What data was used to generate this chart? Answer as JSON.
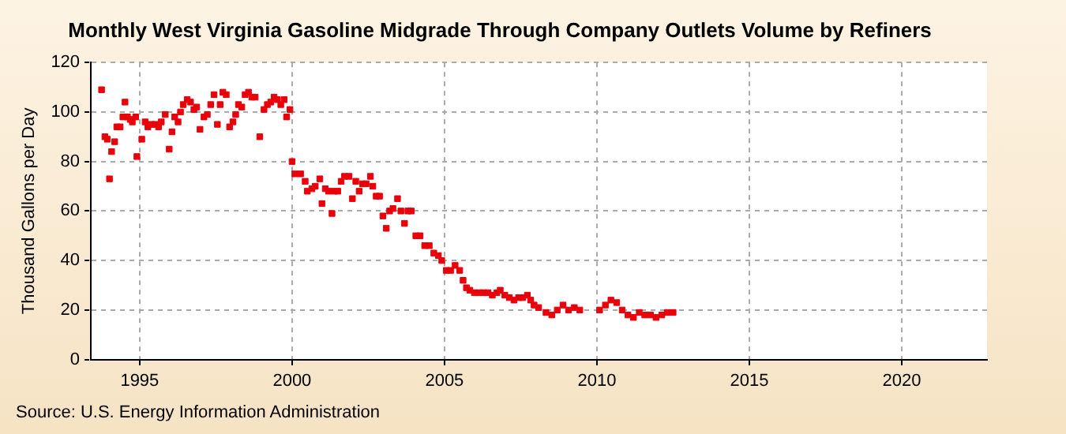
{
  "chart_data": {
    "type": "scatter",
    "title": "Monthly West Virginia Gasoline Midgrade Through Company Outlets Volume by Refiners",
    "ylabel": "Thousand Gallons per Day",
    "annotations": [
      "Source: U.S. Energy Information Administration"
    ],
    "xlim": [
      1993.4,
      2022.8
    ],
    "xticks": [
      1995,
      2000,
      2005,
      2010,
      2015,
      2020
    ],
    "ylim": [
      0,
      120
    ],
    "yticks": [
      0,
      20,
      40,
      60,
      80,
      100,
      120
    ],
    "grid": true,
    "marker": "square",
    "legend": false,
    "series": [
      {
        "color": "#e8000b",
        "x": [
          1993.75,
          1993.86,
          1993.94,
          1994.01,
          1994.08,
          1994.18,
          1994.25,
          1994.36,
          1994.45,
          1994.52,
          1994.6,
          1994.69,
          1994.76,
          1994.87,
          1994.91,
          1995.07,
          1995.18,
          1995.27,
          1995.38,
          1995.51,
          1995.62,
          1995.71,
          1995.84,
          1995.97,
          1996.06,
          1996.15,
          1996.26,
          1996.34,
          1996.43,
          1996.56,
          1996.67,
          1996.78,
          1996.87,
          1996.98,
          1997.11,
          1997.22,
          1997.33,
          1997.44,
          1997.55,
          1997.64,
          1997.73,
          1997.84,
          1997.95,
          1998.06,
          1998.15,
          1998.24,
          1998.35,
          1998.46,
          1998.57,
          1998.68,
          1998.79,
          1998.94,
          1999.08,
          1999.19,
          1999.3,
          1999.41,
          1999.52,
          1999.63,
          1999.74,
          1999.82,
          1999.93,
          2000.0,
          2000.09,
          2000.28,
          2000.43,
          2000.5,
          2000.65,
          2000.76,
          2000.91,
          2000.98,
          2001.09,
          2001.2,
          2001.31,
          2001.39,
          2001.5,
          2001.61,
          2001.72,
          2001.87,
          2001.98,
          2002.09,
          2002.2,
          2002.31,
          2002.43,
          2002.57,
          2002.65,
          2002.76,
          2002.87,
          2002.98,
          2003.09,
          2003.2,
          2003.31,
          2003.46,
          2003.57,
          2003.69,
          2003.8,
          2003.91,
          2004.06,
          2004.2,
          2004.35,
          2004.5,
          2004.65,
          2004.8,
          2004.91,
          2005.06,
          2005.2,
          2005.35,
          2005.5,
          2005.61,
          2005.72,
          2005.83,
          2005.98,
          2006.13,
          2006.28,
          2006.43,
          2006.57,
          2006.72,
          2006.83,
          2006.98,
          2007.13,
          2007.28,
          2007.43,
          2007.57,
          2007.72,
          2007.83,
          2007.94,
          2008.09,
          2008.33,
          2008.52,
          2008.7,
          2008.89,
          2009.07,
          2009.26,
          2009.44,
          2010.09,
          2010.28,
          2010.46,
          2010.65,
          2010.83,
          2011.02,
          2011.2,
          2011.39,
          2011.57,
          2011.76,
          2011.94,
          2012.13,
          2012.31,
          2012.5
        ],
        "values": [
          109,
          90,
          89,
          73,
          84,
          88,
          94,
          94,
          98,
          104,
          98,
          97,
          96,
          98,
          82,
          89,
          96,
          94,
          95,
          95,
          94,
          96,
          99,
          85,
          92,
          98,
          96,
          100,
          103,
          105,
          104,
          101,
          102,
          93,
          98,
          99,
          103,
          107,
          95,
          103,
          108,
          107,
          94,
          96,
          99,
          103,
          102,
          107,
          108,
          106,
          106,
          90,
          101,
          103,
          104,
          106,
          105,
          103,
          105,
          98,
          101,
          80,
          75,
          75,
          72,
          68,
          69,
          70,
          73,
          63,
          69,
          68,
          59,
          68,
          68,
          72,
          74,
          74,
          65,
          72,
          68,
          71,
          71,
          74,
          70,
          66,
          66,
          58,
          53,
          60,
          61,
          65,
          60,
          55,
          60,
          60,
          50,
          50,
          46,
          46,
          43,
          42,
          40,
          36,
          36,
          38,
          36,
          32,
          29,
          28,
          27,
          27,
          27,
          27,
          26,
          27,
          28,
          26,
          25,
          24,
          25,
          25,
          26,
          24,
          22,
          21,
          19,
          18,
          20,
          22,
          20,
          21,
          20,
          20,
          22,
          24,
          23,
          20,
          18,
          17,
          19,
          18,
          18,
          17,
          18,
          19,
          19
        ]
      }
    ]
  }
}
